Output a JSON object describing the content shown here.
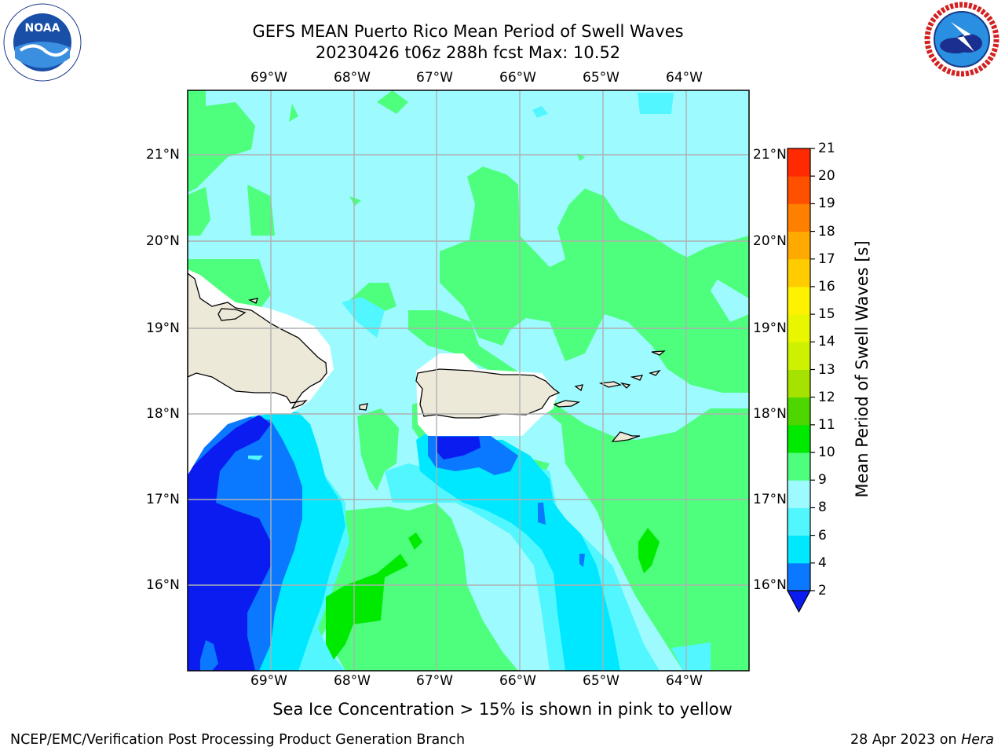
{
  "title": {
    "line1": "GEFS MEAN Puerto Rico Mean Period of Swell Waves",
    "line2": "20230426 t06z 288h fcst   Max: 10.52"
  },
  "logos": {
    "left": {
      "name": "noaa-logo",
      "text": "NOAA"
    },
    "right": {
      "name": "nws-logo",
      "text": "NATIONAL WEATHER SERVICE"
    }
  },
  "map": {
    "lon_labels": [
      "69°W",
      "68°W",
      "67°W",
      "66°W",
      "65°W",
      "64°W"
    ],
    "lat_labels": [
      "21°N",
      "20°N",
      "19°N",
      "18°N",
      "17°N",
      "16°N"
    ],
    "land_color": "#ede9d9",
    "gridline_color": "#b0b0b0"
  },
  "colorbar": {
    "label": "Mean Period of Swell Waves [s]",
    "ticks": [
      "2",
      "4",
      "6",
      "8",
      "9",
      "10",
      "11",
      "12",
      "13",
      "14",
      "15",
      "16",
      "17",
      "18",
      "19",
      "20",
      "21"
    ],
    "colors": [
      "#0a1cf0",
      "#0a78ff",
      "#00e8ff",
      "#52f6ff",
      "#9dfbff",
      "#4dff7d",
      "#00ea00",
      "#4dd600",
      "#a6e200",
      "#cdf100",
      "#e8f600",
      "#fff200",
      "#ffcc00",
      "#ffaa00",
      "#ff8000",
      "#ff5000",
      "#ff2a00",
      "#ff0000"
    ]
  },
  "caption": "Sea Ice Concentration > 15% is shown in pink to yellow",
  "footer": {
    "left": "NCEP/EMC/Verification Post Processing Product Generation Branch",
    "right_prefix": "28 Apr 2023 on ",
    "right_machine": "Hera"
  }
}
